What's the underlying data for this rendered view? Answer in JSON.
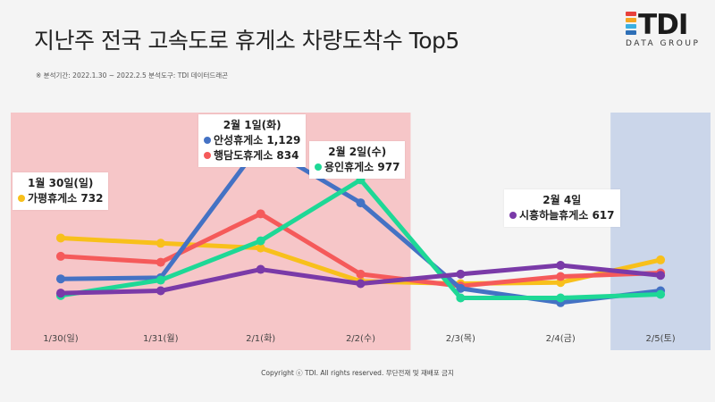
{
  "title": "지난주 전국 고속도로 휴게소 차량도착수 Top5",
  "meta": "※ 분석기간: 2022.1.30 ~ 2022.2.5    분석도구: TDI 데이터드래곤",
  "logo": {
    "text": "TDI",
    "sub": "DATA GROUP",
    "bar_colors": [
      "#e8413c",
      "#f5a623",
      "#3ab0e2",
      "#2e6fb7"
    ]
  },
  "copyright": "Copyright ⓒ TDI. All rights reserved. 무단전재 및 재배포 금지",
  "colors": {
    "holiday_band": "#f6c6c8",
    "weekend_band": "#cbd6ea"
  },
  "callouts": [
    {
      "head": "1월 30일(일)",
      "rows": [
        {
          "label": "가평휴게소 732",
          "color": "#f8c01b"
        }
      ]
    },
    {
      "head": "2월 1일(화)",
      "rows": [
        {
          "label": "안성휴게소 1,129",
          "color": "#4472c4"
        },
        {
          "label": "행담도휴게소 834",
          "color": "#f55a5a"
        }
      ]
    },
    {
      "head": "2월 2일(수)",
      "rows": [
        {
          "label": "용인휴게소 977",
          "color": "#1ed896"
        }
      ]
    },
    {
      "head": "2월 4일",
      "rows": [
        {
          "label": "시흥하늘휴게소 617",
          "color": "#7a3aa8"
        }
      ]
    }
  ],
  "chart_data": {
    "type": "line",
    "categories": [
      "1/30(일)",
      "1/31(월)",
      "2/1(화)",
      "2/2(수)",
      "2/3(목)",
      "2/4(금)",
      "2/5(토)"
    ],
    "ylim": [
      260,
      1260
    ],
    "legend": "none",
    "grid": false,
    "bands": [
      {
        "from": 0,
        "to": 3,
        "color": "#f6c6c8"
      },
      {
        "from": 6,
        "to": 6,
        "color": "#cbd6ea"
      }
    ],
    "series": [
      {
        "color": "#f8c01b",
        "values": [
          732,
          710,
          690,
          550,
          540,
          545,
          640
        ]
      },
      {
        "color": "#f55a5a",
        "values": [
          655,
          630,
          834,
          580,
          530,
          570,
          585
        ]
      },
      {
        "color": "#4472c4",
        "values": [
          560,
          565,
          1129,
          880,
          520,
          460,
          510
        ]
      },
      {
        "color": "#1ed896",
        "values": [
          490,
          555,
          720,
          977,
          480,
          480,
          495
        ]
      },
      {
        "color": "#7a3aa8",
        "values": [
          500,
          510,
          600,
          540,
          580,
          617,
          575
        ]
      }
    ]
  }
}
